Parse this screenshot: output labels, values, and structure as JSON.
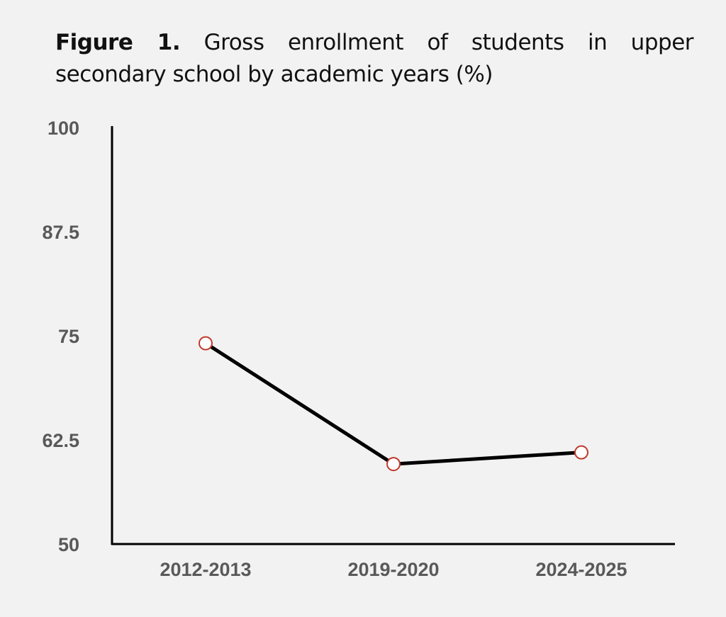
{
  "title": {
    "label": "Figure 1.",
    "line1_rest": "Gross enrollment of students in upper",
    "line2": "secondary school by academic years (%)"
  },
  "chart_data": {
    "type": "line",
    "title": "Figure 1. Gross enrollment of students in upper secondary school by academic years (%)",
    "xlabel": "",
    "ylabel": "",
    "categories": [
      "2012-2013",
      "2019-2020",
      "2024-2025"
    ],
    "series": [
      {
        "name": "Gross enrollment (%)",
        "values": [
          74.1,
          59.6,
          61.0
        ]
      }
    ],
    "ylim": [
      50,
      100
    ],
    "yticks": [
      "50",
      "62.5",
      "75",
      "87.5",
      "100"
    ],
    "grid": false,
    "legend": "none",
    "colors": {
      "line": "#000000",
      "marker_edge": "#c0392b",
      "marker_fill": "#ffffff",
      "tick_text": "#595959"
    }
  }
}
